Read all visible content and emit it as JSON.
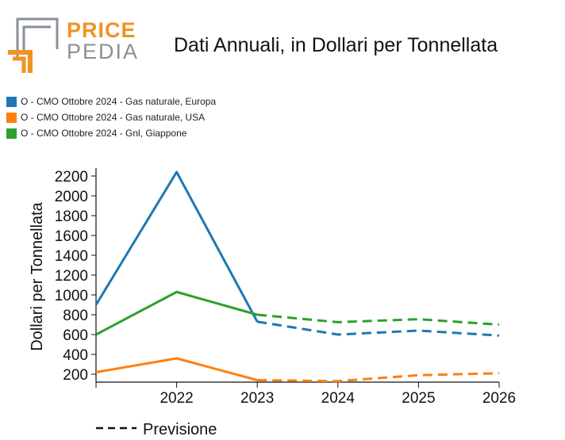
{
  "brand": {
    "word1": "PRICE",
    "word2": "PEDIA"
  },
  "colors": {
    "orange": "#f29222",
    "grey": "#8a8f98",
    "blue": "#1f77b4",
    "orange_series": "#ff7f0e",
    "green": "#2ca02c"
  },
  "chart_data": {
    "type": "line",
    "title": "Dati Annuali, in Dollari per Tonnellata",
    "xlabel": "",
    "ylabel": "Dollari per Tonnellata",
    "x": [
      2021,
      2022,
      2023,
      2024,
      2025,
      2026
    ],
    "xticks": [
      "",
      "2022",
      "2023",
      "2024",
      "2025",
      "2026"
    ],
    "yticks": [
      200,
      400,
      600,
      800,
      1000,
      1200,
      1400,
      1600,
      1800,
      2000,
      2200
    ],
    "ylim": [
      120,
      2280
    ],
    "forecast_from": 2023,
    "series": [
      {
        "name": "O - CMO Ottobre 2024 - Gas naturale, Europa",
        "color": "#1f77b4",
        "values": [
          900,
          2240,
          730,
          600,
          640,
          590
        ]
      },
      {
        "name": "O - CMO Ottobre 2024 - Gas naturale, USA",
        "color": "#ff7f0e",
        "values": [
          220,
          360,
          140,
          130,
          190,
          210
        ]
      },
      {
        "name": "O - CMO Ottobre 2024 - Gnl, Giappone",
        "color": "#2ca02c",
        "values": [
          600,
          1030,
          800,
          725,
          755,
          700
        ]
      }
    ],
    "forecast_legend": "Previsione"
  }
}
